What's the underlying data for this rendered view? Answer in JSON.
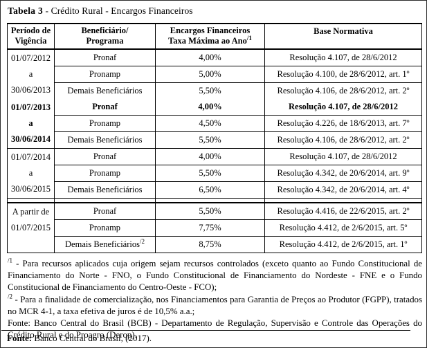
{
  "title": {
    "bold": "Tabela  3",
    "rest": " - Crédito Rural - Encargos Financeiros"
  },
  "table": {
    "headers": [
      {
        "line1": "Período de",
        "line2": "Vigência",
        "sup": ""
      },
      {
        "line1": "Beneficiário/",
        "line2": "Programa",
        "sup": ""
      },
      {
        "line1": "Encargos Financeiros",
        "line2": "Taxa Máxima ao Ano",
        "sup": "/1"
      },
      {
        "line1": "Base Normativa",
        "line2": "",
        "sup": ""
      }
    ],
    "groups": [
      {
        "period": [
          "01/07/2012",
          "a",
          "30/06/2013"
        ],
        "rows": [
          {
            "program": "Pronaf",
            "program_sup": "",
            "rate": "4,00%",
            "norm": "Resolução 4.107, de 28/6/2012",
            "bold": false
          },
          {
            "program": "Pronamp",
            "program_sup": "",
            "rate": "5,00%",
            "norm": "Resolução 4.100, de 28/6/2012, art. 1º",
            "bold": false
          },
          {
            "program": "Demais Beneficiários",
            "program_sup": "",
            "rate": "5,50%",
            "norm": "Resolução 4.106, de 28/6/2012, art. 2º",
            "bold": false
          }
        ]
      },
      {
        "period": [
          "01/07/2013",
          "a",
          "30/06/2014"
        ],
        "rows": [
          {
            "program": "Pronaf",
            "program_sup": "",
            "rate": "4,00%",
            "norm": "Resolução 4.107, de 28/6/2012",
            "bold": true
          },
          {
            "program": "Pronamp",
            "program_sup": "",
            "rate": "4,50%",
            "norm": "Resolução 4.226, de 18/6/2013, art. 7º",
            "bold": false
          },
          {
            "program": "Demais Beneficiários",
            "program_sup": "",
            "rate": "5,50%",
            "norm": "Resolução 4.106, de 28/6/2012, art. 2º",
            "bold": false
          }
        ]
      },
      {
        "period": [
          "01/07/2014",
          "a",
          "30/06/2015"
        ],
        "rows": [
          {
            "program": "Pronaf",
            "program_sup": "",
            "rate": "4,00%",
            "norm": "Resolução 4.107, de 28/6/2012",
            "bold": false
          },
          {
            "program": "Pronamp",
            "program_sup": "",
            "rate": "5,50%",
            "norm": "Resolução 4.342, de 20/6/2014, art. 9º",
            "bold": false
          },
          {
            "program": "Demais Beneficiários",
            "program_sup": "",
            "rate": "6,50%",
            "norm": "Resolução 4.342, de 20/6/2014, art. 4º",
            "bold": false
          }
        ]
      },
      {
        "period": [
          "A partir de",
          "01/07/2015",
          ""
        ],
        "rows": [
          {
            "program": "Pronaf",
            "program_sup": "",
            "rate": "5,50%",
            "norm": "Resolução 4.416, de 22/6/2015, art. 2º",
            "bold": false
          },
          {
            "program": "Pronamp",
            "program_sup": "",
            "rate": "7,75%",
            "norm": "Resolução 4.412, de 2/6/2015, art. 5º",
            "bold": false
          },
          {
            "program": "Demais Beneficiários",
            "program_sup": "/2",
            "rate": "8,75%",
            "norm": "Resolução 4.412, de 2/6/2015, art. 1º",
            "bold": false
          }
        ]
      }
    ]
  },
  "footnotes": [
    {
      "sup": "/1",
      "text": " - Para recursos aplicados cuja origem sejam recursos controlados (exceto quanto ao Fundo Constitucional de Financiamento do Norte - FNO, o Fundo Constitucional de Financiamento do Nordeste - FNE e o Fundo Constitucional de Financiamento do Centro-Oeste - FCO);"
    },
    {
      "sup": "/2",
      "text": " - Para a finalidade de comercialização, nos Financiamentos para Garantia de Preços ao Produtor (FGPP), tratados no MCR 4-1, a taxa efetiva de juros é de 10,5% a.a.;"
    },
    {
      "sup": "",
      "text": "Fonte: Banco Central do Brasil (BCB) - Departamento de Regulação, Supervisão e Controle das Operações do Crédito Rural e do Proagro (Derop)."
    }
  ],
  "bottom_source": {
    "label": "Fonte:",
    "text": " Banco Central do Brasil, (2017)."
  }
}
